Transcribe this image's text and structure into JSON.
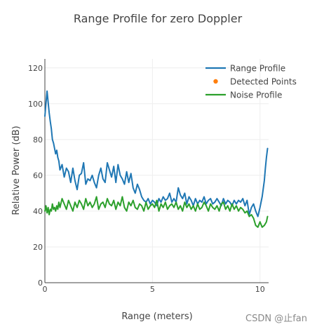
{
  "chart_data": {
    "type": "line",
    "title": "Range Profile for zero Doppler",
    "xlabel": "Range (meters)",
    "ylabel": "Relative Power (dB)",
    "xlim": [
      0,
      10.4
    ],
    "ylim": [
      0,
      125
    ],
    "xticks": [
      0,
      5,
      10
    ],
    "yticks": [
      0,
      20,
      40,
      60,
      80,
      100,
      120
    ],
    "grid": true,
    "legend_position": "top-right",
    "series": [
      {
        "name": "Range Profile",
        "color": "#1f77b4",
        "mode": "lines",
        "x": [
          0.0,
          0.05,
          0.1,
          0.15,
          0.2,
          0.25,
          0.3,
          0.35,
          0.4,
          0.45,
          0.5,
          0.55,
          0.6,
          0.65,
          0.7,
          0.8,
          0.9,
          1.0,
          1.1,
          1.2,
          1.3,
          1.4,
          1.5,
          1.6,
          1.7,
          1.8,
          1.9,
          2.0,
          2.1,
          2.2,
          2.3,
          2.4,
          2.5,
          2.6,
          2.7,
          2.8,
          2.9,
          3.0,
          3.1,
          3.2,
          3.3,
          3.4,
          3.5,
          3.6,
          3.7,
          3.8,
          3.9,
          4.0,
          4.1,
          4.2,
          4.3,
          4.4,
          4.5,
          4.6,
          4.7,
          4.8,
          4.9,
          5.0,
          5.1,
          5.2,
          5.3,
          5.4,
          5.5,
          5.6,
          5.7,
          5.8,
          5.9,
          6.0,
          6.1,
          6.2,
          6.3,
          6.4,
          6.5,
          6.6,
          6.7,
          6.8,
          6.9,
          7.0,
          7.1,
          7.2,
          7.3,
          7.4,
          7.5,
          7.6,
          7.7,
          7.8,
          7.9,
          8.0,
          8.1,
          8.2,
          8.3,
          8.4,
          8.5,
          8.6,
          8.7,
          8.8,
          8.9,
          9.0,
          9.1,
          9.2,
          9.3,
          9.4,
          9.5,
          9.6,
          9.7,
          9.8,
          9.9,
          10.0,
          10.1,
          10.2,
          10.25,
          10.3,
          10.35
        ],
        "y": [
          93,
          100,
          107,
          101,
          95,
          90,
          86,
          80,
          78,
          75,
          72,
          74,
          70,
          68,
          63,
          66,
          59,
          64,
          62,
          56,
          64,
          57,
          52,
          60,
          61,
          67,
          55,
          58,
          57,
          60,
          56,
          53,
          60,
          64,
          58,
          56,
          67,
          63,
          59,
          65,
          56,
          66,
          60,
          58,
          55,
          62,
          56,
          61,
          53,
          50,
          55,
          52,
          48,
          46,
          45,
          47,
          44,
          46,
          45,
          43,
          47,
          45,
          48,
          46,
          47,
          50,
          45,
          47,
          45,
          53,
          49,
          47,
          50,
          44,
          48,
          46,
          43,
          47,
          44,
          46,
          45,
          48,
          44,
          46,
          47,
          44,
          45,
          47,
          45,
          43,
          47,
          44,
          46,
          45,
          43,
          46,
          44,
          46,
          45,
          47,
          43,
          46,
          38,
          42,
          44,
          40,
          37,
          42,
          48,
          57,
          64,
          70,
          75
        ]
      },
      {
        "name": "Detected Points",
        "color": "#ff7f0e",
        "mode": "markers",
        "x": [],
        "y": []
      },
      {
        "name": "Noise Profile",
        "color": "#2ca02c",
        "mode": "lines",
        "x": [
          0.0,
          0.05,
          0.1,
          0.15,
          0.2,
          0.25,
          0.3,
          0.35,
          0.4,
          0.45,
          0.5,
          0.55,
          0.6,
          0.65,
          0.7,
          0.8,
          0.9,
          1.0,
          1.1,
          1.2,
          1.3,
          1.4,
          1.5,
          1.6,
          1.7,
          1.8,
          1.9,
          2.0,
          2.1,
          2.2,
          2.3,
          2.4,
          2.5,
          2.6,
          2.7,
          2.8,
          2.9,
          3.0,
          3.1,
          3.2,
          3.3,
          3.4,
          3.5,
          3.6,
          3.7,
          3.8,
          3.9,
          4.0,
          4.1,
          4.2,
          4.3,
          4.4,
          4.5,
          4.6,
          4.7,
          4.8,
          4.9,
          5.0,
          5.1,
          5.2,
          5.3,
          5.4,
          5.5,
          5.6,
          5.7,
          5.8,
          5.9,
          6.0,
          6.1,
          6.2,
          6.3,
          6.4,
          6.5,
          6.6,
          6.7,
          6.8,
          6.9,
          7.0,
          7.1,
          7.2,
          7.3,
          7.4,
          7.5,
          7.6,
          7.7,
          7.8,
          7.9,
          8.0,
          8.1,
          8.2,
          8.3,
          8.4,
          8.5,
          8.6,
          8.7,
          8.8,
          8.9,
          9.0,
          9.1,
          9.2,
          9.3,
          9.4,
          9.5,
          9.6,
          9.7,
          9.8,
          9.9,
          10.0,
          10.1,
          10.2,
          10.25,
          10.3,
          10.35
        ],
        "y": [
          40,
          43,
          39,
          42,
          38,
          41,
          40,
          44,
          41,
          42,
          40,
          43,
          41,
          45,
          42,
          47,
          44,
          41,
          46,
          43,
          40,
          45,
          42,
          46,
          44,
          41,
          47,
          43,
          45,
          42,
          44,
          48,
          41,
          44,
          45,
          42,
          47,
          44,
          43,
          46,
          41,
          45,
          43,
          48,
          42,
          40,
          45,
          43,
          46,
          42,
          41,
          44,
          43,
          40,
          45,
          41,
          43,
          44,
          42,
          46,
          40,
          44,
          42,
          45,
          41,
          43,
          44,
          42,
          45,
          41,
          43,
          40,
          45,
          42,
          44,
          41,
          43,
          40,
          44,
          41,
          42,
          45,
          43,
          40,
          44,
          42,
          41,
          43,
          40,
          44,
          45,
          41,
          43,
          40,
          44,
          41,
          43,
          40,
          42,
          41,
          39,
          40,
          37,
          38,
          36,
          32,
          31,
          34,
          31,
          32,
          33,
          34,
          37
        ]
      }
    ]
  },
  "watermark": "CSDN @止fan"
}
